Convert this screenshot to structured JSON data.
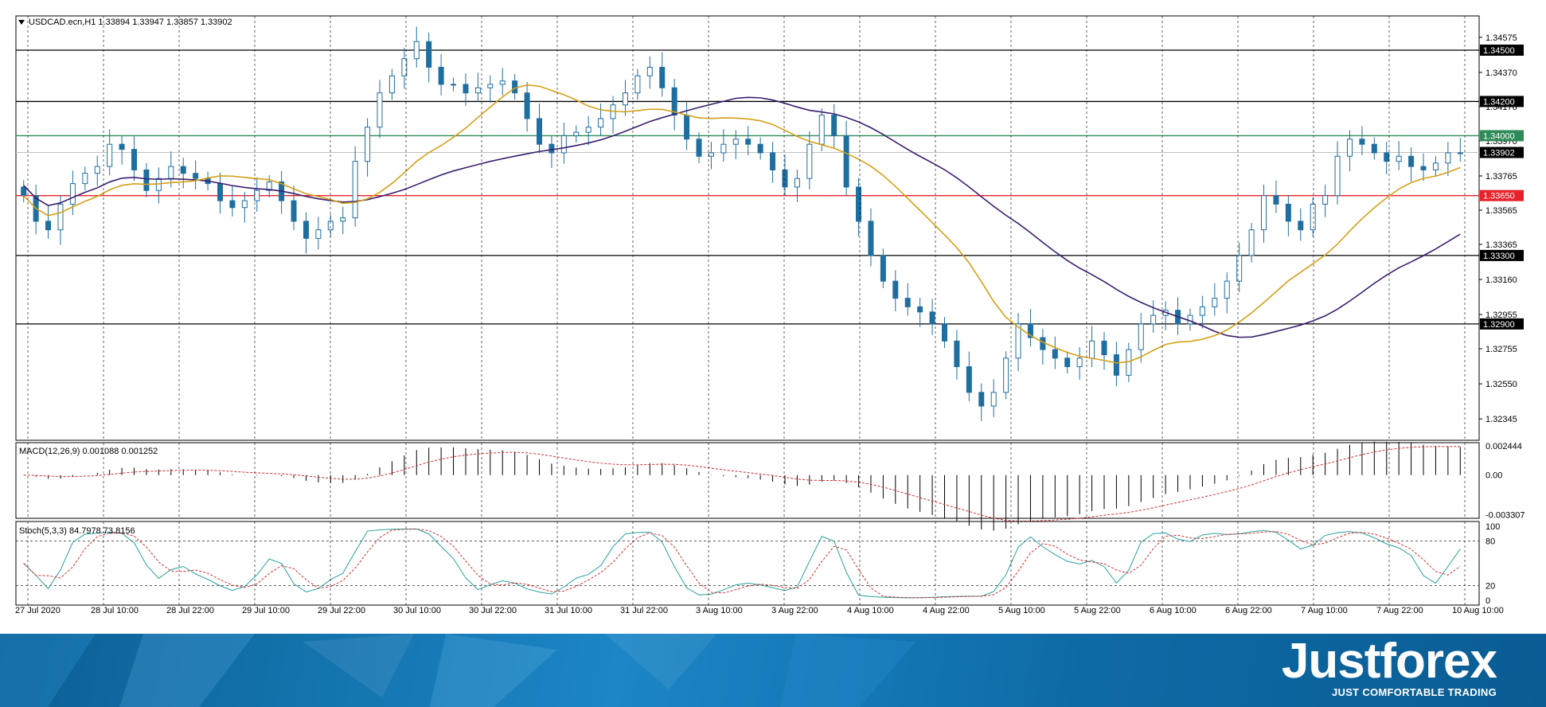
{
  "chart_data": [
    {
      "type": "candlestick",
      "header_text": "USDCAD.ecn,H1  1.33894 1.33947 1.33857 1.33902",
      "y_ticks": [
        "1.34575",
        "1.34370",
        "1.34170",
        "1.33970",
        "1.33765",
        "1.33565",
        "1.33365",
        "1.33160",
        "1.32955",
        "1.32755",
        "1.32550",
        "1.32345"
      ],
      "ylim": [
        1.3222,
        1.347
      ],
      "x_labels": [
        "27 Jul 2020",
        "28 Jul 10:00",
        "28 Jul 22:00",
        "29 Jul 10:00",
        "29 Jul 22:00",
        "30 Jul 10:00",
        "30 Jul 22:00",
        "31 Jul 10:00",
        "31 Jul 22:00",
        "3 Aug 10:00",
        "3 Aug 22:00",
        "4 Aug 10:00",
        "4 Aug 22:00",
        "5 Aug 10:00",
        "5 Aug 22:00",
        "6 Aug 10:00",
        "6 Aug 22:00",
        "7 Aug 10:00",
        "7 Aug 22:00",
        "10 Aug 10:00"
      ],
      "levels": [
        {
          "label": "1.34500",
          "value": 1.345,
          "color": "#000000"
        },
        {
          "label": "1.34200",
          "value": 1.342,
          "color": "#000000"
        },
        {
          "label": "1.34000",
          "value": 1.34,
          "color": "#2e8b57"
        },
        {
          "label": "1.33650",
          "value": 1.3365,
          "color": "#e8202a"
        },
        {
          "label": "1.33300",
          "value": 1.333,
          "color": "#000000"
        },
        {
          "label": "1.32900",
          "value": 1.329,
          "color": "#000000"
        }
      ],
      "current_price": {
        "label": "1.33902",
        "value": 1.33902
      },
      "series": [
        {
          "name": "close",
          "values": [
            1.3365,
            1.335,
            1.3345,
            1.336,
            1.3372,
            1.3378,
            1.3382,
            1.3395,
            1.3392,
            1.338,
            1.3368,
            1.3375,
            1.3382,
            1.3378,
            1.3375,
            1.3372,
            1.3362,
            1.3358,
            1.3362,
            1.3368,
            1.3373,
            1.3362,
            1.335,
            1.334,
            1.3345,
            1.335,
            1.3352,
            1.3385,
            1.3405,
            1.3425,
            1.3435,
            1.3445,
            1.3455,
            1.344,
            1.343,
            1.343,
            1.3425,
            1.3428,
            1.343,
            1.3432,
            1.3425,
            1.341,
            1.3395,
            1.339,
            1.34,
            1.3402,
            1.3405,
            1.341,
            1.3418,
            1.3425,
            1.3435,
            1.344,
            1.3428,
            1.3412,
            1.3398,
            1.3388,
            1.339,
            1.3395,
            1.3398,
            1.3395,
            1.339,
            1.338,
            1.337,
            1.3375,
            1.3395,
            1.3412,
            1.34,
            1.337,
            1.335,
            1.333,
            1.3315,
            1.3305,
            1.33,
            1.3297,
            1.329,
            1.328,
            1.3265,
            1.325,
            1.3242,
            1.325,
            1.327,
            1.329,
            1.3282,
            1.3275,
            1.327,
            1.3265,
            1.327,
            1.328,
            1.3272,
            1.326,
            1.3275,
            1.329,
            1.3295,
            1.3298,
            1.329,
            1.3295,
            1.33,
            1.3305,
            1.3315,
            1.333,
            1.3345,
            1.3365,
            1.336,
            1.335,
            1.3345,
            1.336,
            1.3365,
            1.3388,
            1.3398,
            1.3395,
            1.339,
            1.3385,
            1.3388,
            1.3382,
            1.338,
            1.3384,
            1.339,
            1.339
          ]
        },
        {
          "name": "MACD(12,26,9)",
          "header_text": "MACD(12,26,9) 0.001088 0.001252",
          "y_ticks": [
            "0.002444",
            "0.00",
            "-0.003307"
          ],
          "ylim": [
            -0.0036,
            0.0027
          ]
        },
        {
          "name": "Stoch(5,3,3)",
          "header_text": "Stoch(5,3,3) 84.7978 73.8156",
          "y_ticks": [
            "100",
            "80",
            "20",
            "0"
          ],
          "ylim": [
            0,
            100
          ]
        }
      ]
    }
  ],
  "branding": {
    "logo_text": "Justforex",
    "tagline": "JUST COMFORTABLE TRADING"
  },
  "colors": {
    "bull": "#1f6ea0",
    "bear": "#1f6ea0",
    "ma_fast": "#d4a017",
    "ma_slow": "#3b1e6e",
    "stoch_main": "#2aa0a0",
    "stoch_signal": "#d23030"
  }
}
